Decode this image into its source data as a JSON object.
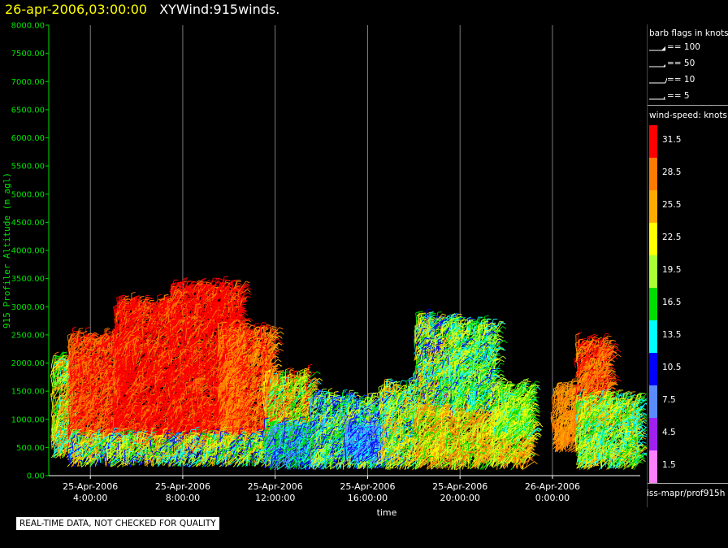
{
  "header": {
    "date_text": "26-apr-2006,03:00:00",
    "title_text": "XYWind:915winds."
  },
  "legend": {
    "flags_heading": "barb flags in knots",
    "flags": [
      {
        "label": "== 100"
      },
      {
        "label": "== 50"
      },
      {
        "label": "== 10"
      },
      {
        "label": "== 5"
      }
    ],
    "speed_heading": "wind-speed: knots",
    "colorbar": [
      {
        "label": "31.5",
        "color": "#ff0000"
      },
      {
        "label": "28.5",
        "color": "#ff7a00"
      },
      {
        "label": "25.5",
        "color": "#ffaa00"
      },
      {
        "label": "22.5",
        "color": "#ffff00"
      },
      {
        "label": "19.5",
        "color": "#aaff33"
      },
      {
        "label": "16.5",
        "color": "#00dd00"
      },
      {
        "label": "13.5",
        "color": "#00ffff"
      },
      {
        "label": "10.5",
        "color": "#0000ff"
      },
      {
        "label": "7.5",
        "color": "#5a8cff"
      },
      {
        "label": "4.5",
        "color": "#a020f0"
      },
      {
        "label": "1.5",
        "color": "#ff80ff"
      }
    ],
    "source_text": "iss-mapr/prof915h"
  },
  "notice": "REAL-TIME DATA, NOT CHECKED FOR QUALITY",
  "chart_data": {
    "type": "scatter",
    "title": "XYWind:915winds.",
    "xlabel": "time",
    "ylabel": "915 Profiler Altitude (m agl)",
    "ylim": [
      0,
      8000
    ],
    "xlim_hours": [
      2.2,
      27.8
    ],
    "yticks": [
      "0.00",
      "500.00",
      "1000.00",
      "1500.00",
      "2000.00",
      "2500.00",
      "3000.00",
      "3500.00",
      "4000.00",
      "4500.00",
      "5000.00",
      "5500.00",
      "6000.00",
      "6500.00",
      "7000.00",
      "7500.00",
      "8000.00"
    ],
    "xticks": [
      {
        "date": "25-Apr-2006",
        "time": "4:00:00"
      },
      {
        "date": "25-Apr-2006",
        "time": "8:00:00"
      },
      {
        "date": "25-Apr-2006",
        "time": "12:00:00"
      },
      {
        "date": "25-Apr-2006",
        "time": "16:00:00"
      },
      {
        "date": "25-Apr-2006",
        "time": "20:00:00"
      },
      {
        "date": "26-Apr-2006",
        "time": "0:00:00"
      }
    ],
    "xtick_hours": [
      4,
      8,
      12,
      16,
      20,
      24
    ],
    "grid": "vertical",
    "clusters": [
      {
        "t0": 2.3,
        "t1": 3.2,
        "z0": 300,
        "z1": 2000,
        "speed": 21,
        "var": 8
      },
      {
        "t0": 3.0,
        "t1": 5.2,
        "z0": 400,
        "z1": 2400,
        "speed": 30,
        "var": 3
      },
      {
        "t0": 5.0,
        "t1": 7.5,
        "z0": 500,
        "z1": 3000,
        "speed": 31,
        "var": 2
      },
      {
        "t0": 7.4,
        "t1": 10.5,
        "z0": 400,
        "z1": 3300,
        "speed": 31,
        "var": 2
      },
      {
        "t0": 9.5,
        "t1": 11.8,
        "z0": 500,
        "z1": 2500,
        "speed": 29,
        "var": 4
      },
      {
        "t0": 3.0,
        "t1": 11.8,
        "z0": 150,
        "z1": 600,
        "speed": 18,
        "var": 9
      },
      {
        "t0": 11.5,
        "t1": 13.5,
        "z0": 400,
        "z1": 1700,
        "speed": 23,
        "var": 9
      },
      {
        "t0": 11.5,
        "t1": 14.0,
        "z0": 100,
        "z1": 800,
        "speed": 12,
        "var": 6
      },
      {
        "t0": 13.5,
        "t1": 16.5,
        "z0": 100,
        "z1": 1300,
        "speed": 16,
        "var": 8
      },
      {
        "t0": 15.0,
        "t1": 17.0,
        "z0": 200,
        "z1": 800,
        "speed": 10,
        "var": 4
      },
      {
        "t0": 16.5,
        "t1": 18.0,
        "z0": 100,
        "z1": 1500,
        "speed": 19,
        "var": 8
      },
      {
        "t0": 18.0,
        "t1": 19.8,
        "z0": 1000,
        "z1": 2700,
        "speed": 18,
        "var": 8
      },
      {
        "t0": 18.0,
        "t1": 23.0,
        "z0": 100,
        "z1": 1100,
        "speed": 23,
        "var": 7
      },
      {
        "t0": 19.5,
        "t1": 21.5,
        "z0": 1100,
        "z1": 2600,
        "speed": 17,
        "var": 6
      },
      {
        "t0": 21.5,
        "t1": 23.0,
        "z0": 600,
        "z1": 1500,
        "speed": 19,
        "var": 5
      },
      {
        "t0": 24.0,
        "t1": 25.0,
        "z0": 400,
        "z1": 1500,
        "speed": 27,
        "var": 3
      },
      {
        "t0": 25.0,
        "t1": 26.4,
        "z0": 800,
        "z1": 2300,
        "speed": 29,
        "var": 3
      },
      {
        "t0": 25.0,
        "t1": 27.7,
        "z0": 100,
        "z1": 1300,
        "speed": 19,
        "var": 7
      }
    ]
  }
}
